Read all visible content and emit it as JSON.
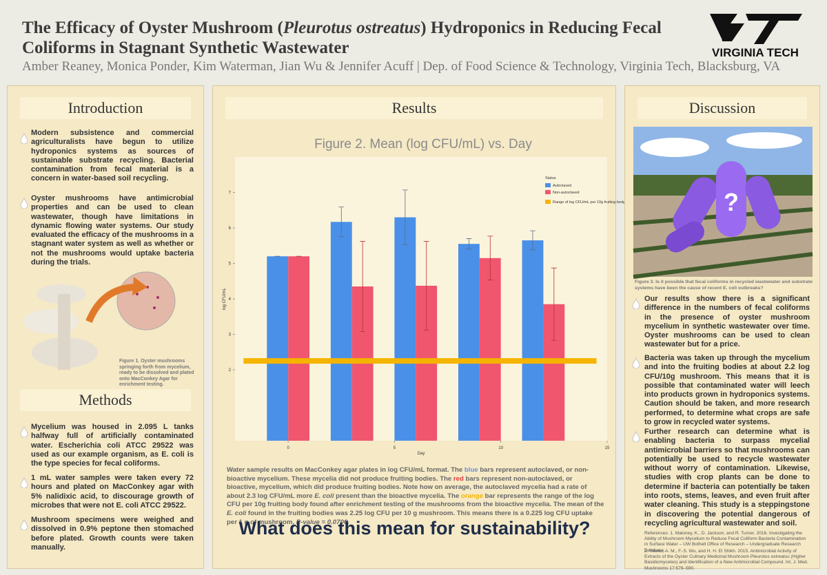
{
  "header": {
    "title": [
      "The Efficacy of Oyster Mushroom (",
      "Pleurotus ostreatus",
      ") Hydroponics in Reducing Fecal Coliforms in Stagnant Synthetic Wastewater"
    ],
    "authors": "Amber Reaney, Monica Ponder, Kim Waterman, Jian Wu & Jennifer Acuff | Dep. of Food Science & Technology, Virginia Tech, Blacksburg, VA",
    "logo": "VIRGINIA TECH"
  },
  "introduction": {
    "heading": "Introduction",
    "paragraphs": [
      "Modern subsistence and commercial agriculturalists have begun to utilize hydroponics systems as sources of sustainable substrate recycling. Bacterial contamination from fecal material is a concern in water-based soil recycling.",
      "Oyster mushrooms have antimicrobial properties and can be used to clean wastewater, though have limitations in dynamic flowing water systems. Our study evaluated the efficacy of the mushrooms in a stagnant water system as well as whether or not the mushrooms would uptake bacteria during the trials."
    ],
    "figure_caption": "Figure 1. Oyster mushrooms springing forth from mycelium, ready to be dissolved and plated onto MacConkey Agar for enrichment testing."
  },
  "methods": {
    "heading": "Methods",
    "paragraphs": [
      "Mycelium was housed in 2.095 L tanks halfway full of artificially contaminated water. Escherichia coli ATCC 29522 was used as our example organism, as E. coli is the type species for fecal coliforms.",
      "1 mL water samples were taken every 72 hours and plated on MacConkey agar with 5% nalidixic acid, to discourage growth of microbes that were not E. coli ATCC 29522.",
      "Mushroom specimens were weighed and dissolved in 0.9% peptone then stomached before plated. Growth counts were taken manually."
    ]
  },
  "results": {
    "heading": "Results",
    "caption": [
      "Water sample results on MacConkey agar plates in log CFU/mL format. The ",
      "blue",
      " bars represent autoclaved, or non-bioactive mycelium. These mycelia did not produce fruiting bodies. The ",
      "red",
      " bars represent non-autoclaved, or bioactive, mycelium, which did produce fruiting bodies. Note how on average, the autoclaved mycelia had a rate of about 2.3 log CFU/mL more ",
      "E. coli",
      " present than the bioactive mycelia. The ",
      "orange",
      " bar represents the range of the log CFU per 10g fruiting body found after enrichment testing of the mushrooms from the bioactive mycelia. The mean of the ",
      "E. coli",
      " found in the fruiting bodies was 2.25 log CFU per 10 g mushroom. This means there is a 0.225 log CFU uptake per 1 g of mushroom. ",
      "P-value = 0.0706."
    ],
    "question": "What does this mean for sustainability?"
  },
  "chart_data": {
    "type": "bar",
    "title": "Figure 2. Mean (log CFU/mL) vs. Day",
    "x_label": "Day",
    "y_label": "log CFU/mL",
    "legend_title": "Status",
    "x": [
      0,
      3,
      6,
      9,
      12
    ],
    "series": [
      {
        "name": "Autoclaved",
        "color": "#4a90e8",
        "values": [
          5.2,
          6.17,
          6.3,
          5.55,
          5.65
        ],
        "errors": [
          0,
          0.42,
          0.77,
          0.15,
          0.27
        ]
      },
      {
        "name": "Non-autoclaved",
        "color": "#f0566e",
        "values": [
          5.2,
          4.35,
          4.37,
          5.15,
          3.85
        ],
        "errors": [
          0,
          1.27,
          1.25,
          0.62,
          1.02
        ]
      }
    ],
    "reference_line": {
      "name": "Range of log CFU/mL per 10g fruiting body",
      "value": 2.25,
      "color": "#f5b400"
    },
    "xlim": [
      -2.5,
      15
    ],
    "xticks": [
      0,
      5,
      10,
      15
    ],
    "ylim": [
      0,
      8
    ],
    "yticks": [
      2,
      3,
      4,
      5,
      6,
      7
    ]
  },
  "discussion": {
    "heading": "Discussion",
    "figure_caption": "Figure 3. Is it possible that fecal coliforms in recycled wastewater and substrate systems have been the cause of recent E. coli outbreaks?",
    "paragraphs": [
      "Our results show there is a significant difference in the numbers of fecal coliforms in the presence of oyster mushroom mycelium in synthetic wastewater over time. Oyster mushrooms can be used to clean wastewater but for a price.",
      "Bacteria was taken up through the mycelium and into the fruiting bodies at about 2.2 log CFU/10g mushroom. This means that it is possible that contaminated water will leech into products grown in hydroponics systems. Caution should be taken, and more research performed, to determine what crops are safe to grow in recycled water systems.",
      "Further research can determine what is enabling bacteria to surpass mycelial antimicrobial barriers so that mushrooms can potentially be used to recycle wastewater without worry of contamination. Likewise, studies with crop plants can be done to determine if bacteria can potentially be taken into roots, stems, leaves, and even fruit after water cleaning. This study is a steppingstone in discovering the potential dangerous of recycling agricultural wastewater and soil."
    ],
    "references": [
      "References: 1. Maloney, K., D. Jackson, and R. Turner. 2016. Investigating the Ability of Mushroom Mycelium to Reduce Fecal Coliform Bacteria Contamination in Surface Water – UW Bothell Office of Research – Undergraduate Research Database.",
      "2. Younis, A. M., F.-S. Wu, and H. H. El Shikh. 2015. Antimicrobial Activity of Extracts of the Oyster Culinary Medicinal Mushroom Pleurotus ostreatus (Higher Basidiomycetes) and Identification of a New Antimicrobial Compound. Int. J. Med. Mushrooms 17:579–590."
    ]
  }
}
